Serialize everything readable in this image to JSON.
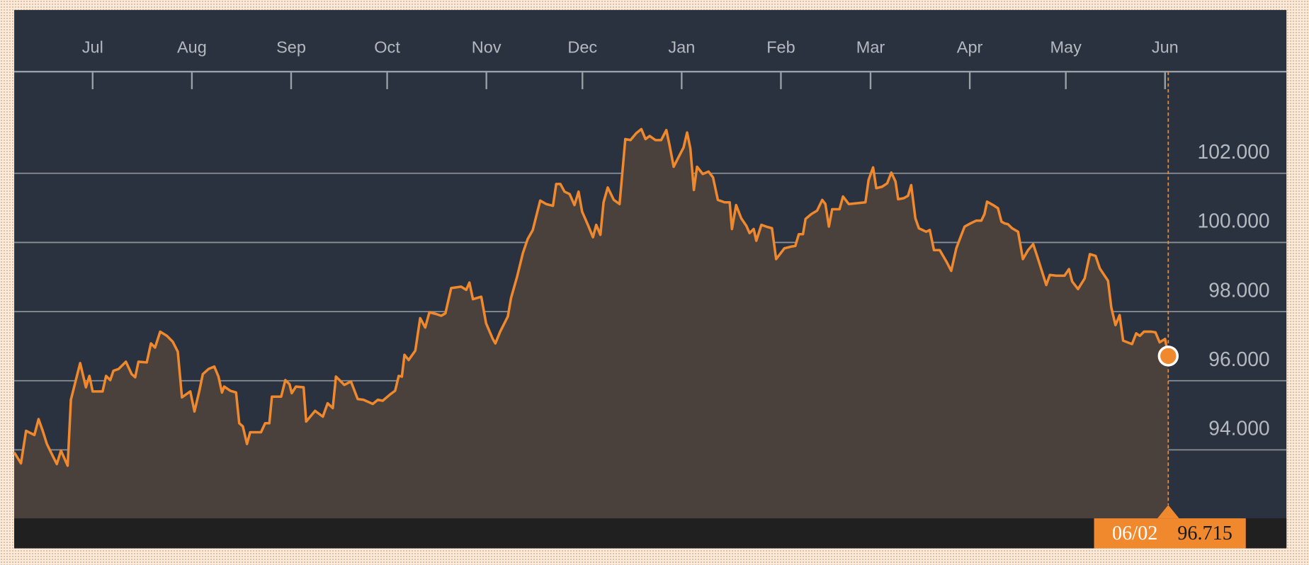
{
  "chart_data": {
    "type": "area",
    "color": "#f0892e",
    "fill": "#4a403c",
    "grid": true,
    "x": [
      -24.5,
      -22.4,
      -20.8,
      -18.2,
      -16.9,
      -15.6,
      -14.3,
      -12.5,
      -11.2,
      -9.9,
      -7.8,
      -6.8,
      -3.9,
      -2.1,
      -1.0,
      0,
      3.1,
      4.2,
      5.5,
      6.5,
      8.1,
      10.4,
      12.2,
      13.3,
      14.3,
      16.9,
      18.2,
      19.5,
      21.1,
      23.2,
      25.0,
      26.6,
      27.9,
      30.5,
      31.8,
      33.3,
      34.4,
      36.2,
      38.0,
      39.3,
      40.4,
      41.1,
      43.0,
      44.8,
      45.8,
      46.9,
      48.2,
      49.2,
      52.6,
      53.9,
      55.2,
      56.0,
      58.9,
      60.2,
      61.5,
      62.2,
      63.5,
      65.9,
      66.7,
      69.5,
      71.9,
      73.4,
      75.0,
      76.0,
      78.6,
      80.7,
      82.8,
      84.6,
      87.5,
      89.1,
      90.6,
      93.0,
      94.5,
      95.6,
      96.6,
      97.4,
      98.7,
      100.8,
      102.3,
      103.9,
      105.2,
      107.3,
      108.9,
      110.2,
      112.0,
      115.1,
      116.7,
      117.7,
      118.8,
      121.4,
      122.9,
      125.0,
      125.8,
      127.3,
      129.7,
      130.7,
      132.6,
      134.4,
      135.9,
      137.5,
      139.8,
      141.7,
      143.8,
      144.8,
      146.1,
      147.4,
      149.0,
      150.5,
      151.8,
      152.9,
      154.7,
      156.3,
      157.3,
      158.6,
      159.6,
      160.9,
      162.8,
      164.6,
      166.4,
      168.0,
      169.8,
      171.4,
      172.7,
      174.0,
      175.8,
      177.6,
      179.2,
      180.2,
      181.5,
      183.1,
      184.6,
      185.7,
      186.7,
      187.8,
      188.8,
      190.6,
      192.4,
      193.8,
      195.3,
      197.4,
      199.0,
      199.7,
      201.0,
      202.6,
      204.2,
      205.2,
      206.5,
      207.3,
      208.9,
      210.4,
      212.2,
      213.5,
      216.1,
      218.2,
      219.5,
      220.6,
      221.9,
      222.7,
      224.5,
      226.3,
      227.9,
      228.9,
      230.0,
      231.0,
      233.3,
      234.4,
      236.2,
      241.4,
      242.4,
      243.8,
      244.8,
      246.6,
      248.2,
      249.5,
      250.8,
      251.6,
      253.4,
      254.7,
      255.7,
      257.0,
      258.1,
      260.4,
      261.5,
      262.8,
      264.6,
      266.7,
      268.2,
      269.8,
      271.1,
      272.4,
      274.2,
      276.0,
      277.6,
      278.6,
      279.4,
      281.3,
      282.8,
      283.9,
      284.9,
      285.9,
      287.2,
      289.1,
      290.6,
      292.2,
      293.8,
      295.1,
      296.9,
      297.9,
      299.0,
      301.0,
      303.6,
      305.0,
      306.0,
      307.8,
      309.9,
      311.5,
      313.3,
      314.6,
      317.2,
      318.2,
      319.5,
      320.8,
      321.9,
      324.7,
      326.0,
      327.1,
      328.4,
      330.7,
      332.0,
      333.3,
      335.0,
      336
    ],
    "values": [
      93.93,
      93.61,
      94.55,
      94.43,
      94.89,
      94.55,
      94.17,
      93.83,
      93.59,
      93.98,
      93.54,
      95.45,
      96.51,
      95.81,
      96.14,
      95.69,
      95.69,
      96.14,
      96.02,
      96.29,
      96.34,
      96.55,
      96.19,
      96.1,
      96.55,
      96.53,
      97.08,
      96.96,
      97.42,
      97.3,
      97.13,
      96.84,
      95.52,
      95.69,
      95.11,
      95.69,
      96.19,
      96.34,
      96.41,
      96.12,
      95.66,
      95.83,
      95.71,
      95.66,
      94.77,
      94.68,
      94.17,
      94.51,
      94.51,
      94.77,
      94.77,
      95.54,
      95.54,
      96.02,
      95.9,
      95.64,
      95.83,
      95.81,
      94.82,
      95.13,
      94.96,
      95.35,
      95.21,
      96.12,
      95.88,
      95.98,
      95.47,
      95.45,
      95.33,
      95.45,
      95.42,
      95.61,
      95.71,
      96.14,
      96.12,
      96.75,
      96.6,
      96.87,
      97.81,
      97.54,
      97.98,
      97.93,
      97.88,
      97.95,
      98.68,
      98.72,
      98.63,
      98.84,
      98.36,
      98.43,
      97.66,
      97.21,
      97.08,
      97.42,
      97.86,
      98.39,
      99.01,
      99.69,
      100.1,
      100.36,
      101.21,
      101.11,
      101.06,
      101.69,
      101.69,
      101.47,
      101.4,
      101.08,
      101.47,
      100.89,
      100.51,
      100.15,
      100.51,
      100.22,
      101.16,
      101.59,
      101.23,
      101.11,
      102.99,
      102.96,
      103.16,
      103.28,
      102.99,
      103.08,
      102.96,
      102.96,
      103.25,
      102.82,
      102.19,
      102.48,
      102.75,
      103.18,
      102.72,
      101.52,
      102.19,
      101.98,
      102.05,
      101.88,
      101.23,
      101.16,
      101.16,
      100.39,
      101.08,
      100.7,
      100.48,
      100.27,
      100.39,
      100.05,
      100.51,
      100.46,
      100.41,
      99.52,
      99.83,
      99.88,
      99.9,
      100.24,
      100.24,
      100.68,
      100.82,
      100.92,
      101.23,
      101.11,
      100.46,
      100.96,
      100.96,
      101.33,
      101.11,
      101.16,
      101.81,
      102.17,
      101.57,
      101.61,
      101.71,
      102.02,
      101.76,
      101.25,
      101.28,
      101.35,
      101.66,
      100.7,
      100.41,
      100.31,
      100.36,
      99.78,
      99.78,
      99.45,
      99.18,
      99.83,
      100.15,
      100.46,
      100.55,
      100.63,
      100.63,
      100.82,
      101.18,
      101.08,
      100.99,
      100.6,
      100.55,
      100.53,
      100.41,
      100.31,
      99.52,
      99.78,
      99.95,
      99.59,
      99.06,
      98.77,
      99.06,
      99.04,
      99.04,
      99.23,
      98.87,
      98.65,
      98.96,
      99.66,
      99.61,
      99.25,
      98.89,
      98.12,
      97.61,
      97.9,
      97.16,
      97.06,
      97.37,
      97.3,
      97.42,
      97.42,
      97.4,
      97.11,
      97.21,
      96.715
    ],
    "xlim": [
      -24.5,
      372.4
    ],
    "ylim": [
      92.02,
      104.94
    ],
    "xticks": [
      {
        "value": 0,
        "label": "Jul"
      },
      {
        "value": 31,
        "label": "Aug"
      },
      {
        "value": 62,
        "label": "Sep"
      },
      {
        "value": 92,
        "label": "Oct"
      },
      {
        "value": 123,
        "label": "Nov"
      },
      {
        "value": 153,
        "label": "Dec"
      },
      {
        "value": 184,
        "label": "Jan"
      },
      {
        "value": 215,
        "label": "Feb"
      },
      {
        "value": 243,
        "label": "Mar"
      },
      {
        "value": 274,
        "label": "Apr"
      },
      {
        "value": 304,
        "label": "May"
      },
      {
        "value": 335,
        "label": "Jun"
      }
    ],
    "yticks": [
      {
        "value": 94,
        "label": "94.000"
      },
      {
        "value": 96,
        "label": "96.000"
      },
      {
        "value": 98,
        "label": "98.000"
      },
      {
        "value": 100,
        "label": "100.000"
      },
      {
        "value": 102,
        "label": "102.000"
      }
    ],
    "tooltip": {
      "x_label": "06/02"
    }
  }
}
